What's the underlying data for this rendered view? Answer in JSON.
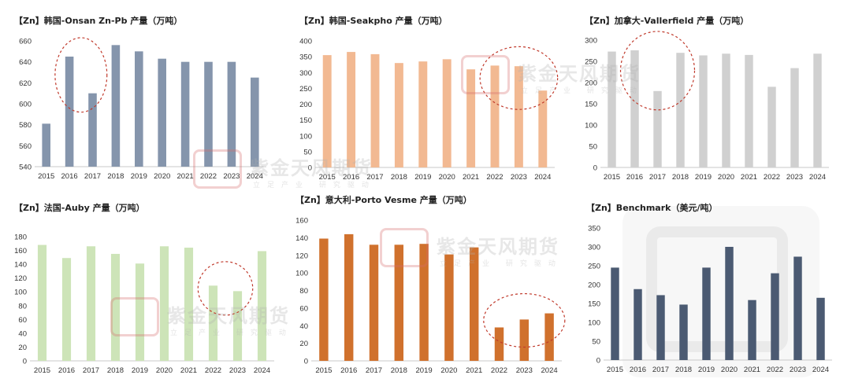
{
  "chart_data": [
    {
      "type": "bar",
      "title": "【Zn】韩国-Onsan Zn-Pb 产量（万吨）",
      "color": "#8595ac",
      "ylim": [
        540,
        660
      ],
      "yticks": [
        540,
        560,
        580,
        600,
        620,
        640,
        660
      ],
      "categories": [
        "2015",
        "2016",
        "2017",
        "2018",
        "2019",
        "2020",
        "2021",
        "2022",
        "2023",
        "2024"
      ],
      "values": [
        581,
        645,
        610,
        656,
        650,
        643,
        640,
        640,
        640,
        625
      ],
      "annotation": {
        "type": "dashed-ellipse",
        "around": [
          "2016",
          "2017"
        ]
      }
    },
    {
      "type": "bar",
      "title": "【Zn】韩国-Seakpho 产量（万吨）",
      "color": "#f2b992",
      "ylim": [
        0,
        400
      ],
      "yticks": [
        0,
        50,
        100,
        150,
        200,
        250,
        300,
        350,
        400
      ],
      "categories": [
        "2015",
        "2016",
        "2017",
        "2018",
        "2019",
        "2020",
        "2021",
        "2022",
        "2023",
        "2024"
      ],
      "values": [
        355,
        365,
        358,
        330,
        335,
        342,
        310,
        322,
        320,
        243
      ],
      "annotation": {
        "type": "dashed-ellipse",
        "around": [
          "2022",
          "2023",
          "2024"
        ]
      }
    },
    {
      "type": "bar",
      "title": "【Zn】加拿大-Vallerfield 产量（万吨）",
      "color": "#d0d0d0",
      "ylim": [
        0,
        300
      ],
      "yticks": [
        0,
        50,
        100,
        150,
        200,
        250,
        300
      ],
      "categories": [
        "2015",
        "2016",
        "2017",
        "2018",
        "2019",
        "2020",
        "2021",
        "2022",
        "2023",
        "2024"
      ],
      "values": [
        273,
        276,
        180,
        270,
        264,
        268,
        265,
        190,
        234,
        268
      ],
      "annotation": {
        "type": "dashed-ellipse",
        "around": [
          "2016",
          "2017",
          "2018"
        ]
      }
    },
    {
      "type": "bar",
      "title": "【Zn】法国-Auby 产量（万吨）",
      "color": "#cde4b8",
      "ylim": [
        0,
        180
      ],
      "yticks": [
        0,
        20,
        40,
        60,
        80,
        100,
        120,
        140,
        160,
        180
      ],
      "categories": [
        "2015",
        "2016",
        "2017",
        "2018",
        "2019",
        "2020",
        "2021",
        "2022",
        "2023",
        "2024"
      ],
      "values": [
        168,
        149,
        166,
        155,
        141,
        166,
        164,
        109,
        101,
        159
      ],
      "annotation": {
        "type": "dashed-ellipse",
        "around": [
          "2022",
          "2023"
        ]
      }
    },
    {
      "type": "bar",
      "title": "【Zn】意大利-Porto Vesme 产量（万吨）",
      "color": "#d0712d",
      "ylim": [
        0,
        160
      ],
      "yticks": [
        0,
        20,
        40,
        60,
        80,
        100,
        120,
        140,
        160
      ],
      "categories": [
        "2015",
        "2016",
        "2017",
        "2018",
        "2019",
        "2020",
        "2021",
        "2022",
        "2023",
        "2024"
      ],
      "values": [
        139,
        144,
        132,
        132,
        133,
        121,
        129,
        38,
        47,
        54
      ],
      "annotation": {
        "type": "dashed-ellipse",
        "around": [
          "2022",
          "2023",
          "2024"
        ]
      }
    },
    {
      "type": "bar",
      "title": "【Zn】Benchmark（美元/吨）",
      "color": "#4b5a72",
      "ylim": [
        0,
        350
      ],
      "yticks": [
        0,
        50,
        100,
        150,
        200,
        250,
        300,
        350
      ],
      "categories": [
        "2015",
        "2016",
        "2017",
        "2018",
        "2019",
        "2020",
        "2021",
        "2022",
        "2023",
        "2024"
      ],
      "values": [
        245,
        188,
        172,
        147,
        245,
        300,
        159,
        230,
        274,
        165
      ]
    }
  ],
  "watermark": {
    "name": "紫金天风期货",
    "subtitle": "立足产业 研究驱动",
    "color": "#d66e6e"
  }
}
